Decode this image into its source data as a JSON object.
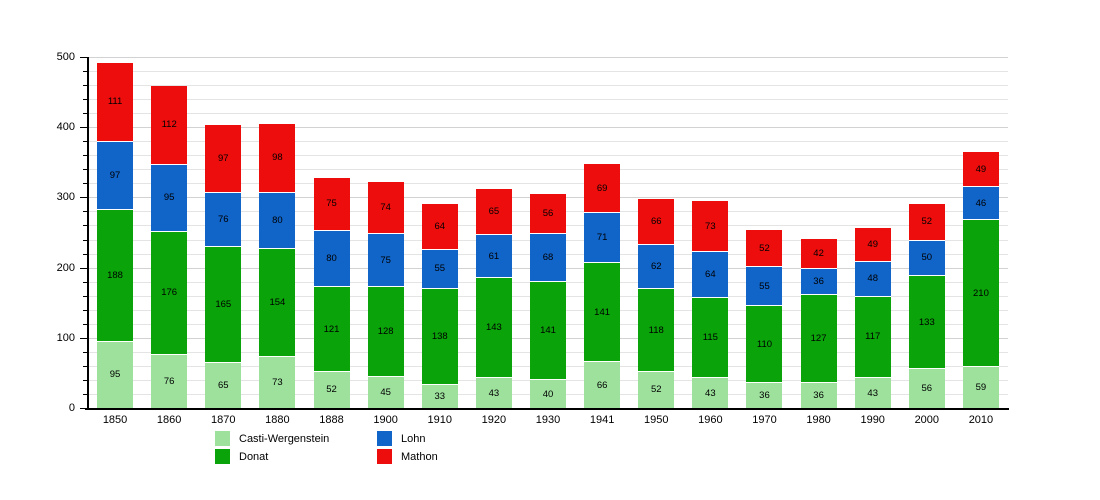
{
  "chart_data": {
    "type": "bar",
    "stacked": true,
    "title": "",
    "xlabel": "",
    "ylabel": "",
    "categories": [
      "1850",
      "1860",
      "1870",
      "1880",
      "1888",
      "1900",
      "1910",
      "1920",
      "1930",
      "1941",
      "1950",
      "1960",
      "1970",
      "1980",
      "1990",
      "2000",
      "2010"
    ],
    "series": [
      {
        "name": "Casti-Wergenstein",
        "color": "#9de19d",
        "values": [
          95,
          76,
          65,
          73,
          52,
          45,
          33,
          43,
          40,
          66,
          52,
          43,
          36,
          36,
          43,
          56,
          59
        ]
      },
      {
        "name": "Donat",
        "color": "#0aa30a",
        "values": [
          188,
          176,
          165,
          154,
          121,
          128,
          138,
          143,
          141,
          141,
          118,
          115,
          110,
          127,
          117,
          133,
          210
        ]
      },
      {
        "name": "Lohn",
        "color": "#1164c8",
        "values": [
          97,
          95,
          76,
          80,
          80,
          75,
          55,
          61,
          68,
          71,
          62,
          64,
          55,
          36,
          48,
          50,
          46
        ]
      },
      {
        "name": "Mathon",
        "color": "#ee0d0d",
        "values": [
          111,
          112,
          97,
          98,
          75,
          74,
          64,
          65,
          56,
          69,
          66,
          73,
          52,
          42,
          49,
          52,
          49
        ]
      }
    ],
    "ylim": [
      0,
      500
    ],
    "y_major_ticks": [
      "0",
      "100",
      "200",
      "300",
      "400",
      "500"
    ],
    "y_minor_step": 20,
    "grid": "horizontal",
    "legend_position": "bottom",
    "legend_columns": [
      [
        "Casti-Wergenstein",
        "Donat"
      ],
      [
        "Lohn",
        "Mathon"
      ]
    ]
  }
}
